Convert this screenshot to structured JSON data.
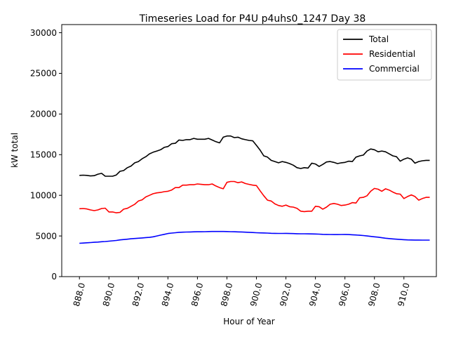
{
  "chart_data": {
    "type": "line",
    "title": "Timeseries Load for P4U p4uhs0_1247  Day 38",
    "xlabel": "Hour of Year",
    "ylabel": "kW total",
    "xlim": [
      886.8,
      912.2
    ],
    "ylim": [
      0,
      31000
    ],
    "x_ticks": [
      888.0,
      890.0,
      892.0,
      894.0,
      896.0,
      898.0,
      900.0,
      902.0,
      904.0,
      906.0,
      908.0,
      910.0
    ],
    "x_tick_labels": [
      "888.0",
      "890.0",
      "892.0",
      "894.0",
      "896.0",
      "898.0",
      "900.0",
      "902.0",
      "904.0",
      "906.0",
      "908.0",
      "910.0"
    ],
    "y_ticks": [
      0,
      5000,
      10000,
      15000,
      20000,
      25000,
      30000
    ],
    "y_tick_labels": [
      "0",
      "5000",
      "10000",
      "15000",
      "20000",
      "25000",
      "30000"
    ],
    "legend_position": "top-right",
    "x": [
      888.0,
      888.25,
      888.5,
      888.75,
      889.0,
      889.25,
      889.5,
      889.75,
      890.0,
      890.25,
      890.5,
      890.75,
      891.0,
      891.25,
      891.5,
      891.75,
      892.0,
      892.25,
      892.5,
      892.75,
      893.0,
      893.25,
      893.5,
      893.75,
      894.0,
      894.25,
      894.5,
      894.75,
      895.0,
      895.25,
      895.5,
      895.75,
      896.0,
      896.25,
      896.5,
      896.75,
      897.0,
      897.25,
      897.5,
      897.75,
      898.0,
      898.25,
      898.5,
      898.75,
      899.0,
      899.25,
      899.5,
      899.75,
      900.0,
      900.25,
      900.5,
      900.75,
      901.0,
      901.25,
      901.5,
      901.75,
      902.0,
      902.25,
      902.5,
      902.75,
      903.0,
      903.25,
      903.5,
      903.75,
      904.0,
      904.25,
      904.5,
      904.75,
      905.0,
      905.25,
      905.5,
      905.75,
      906.0,
      906.25,
      906.5,
      906.75,
      907.0,
      907.25,
      907.5,
      907.75,
      908.0,
      908.25,
      908.5,
      908.75,
      909.0,
      909.25,
      909.5,
      909.75,
      910.0,
      910.25,
      910.5,
      910.75,
      911.0,
      911.25,
      911.5,
      911.75
    ],
    "series": [
      {
        "name": "Total",
        "color": "#000000",
        "values": [
          12450,
          12480,
          12450,
          12380,
          12420,
          12600,
          12700,
          12350,
          12350,
          12350,
          12500,
          12950,
          13050,
          13400,
          13600,
          14000,
          14150,
          14500,
          14750,
          15100,
          15300,
          15450,
          15600,
          15900,
          16000,
          16350,
          16400,
          16800,
          16750,
          16850,
          16850,
          17000,
          16900,
          16900,
          16900,
          17000,
          16800,
          16600,
          16450,
          17150,
          17300,
          17300,
          17100,
          17150,
          16950,
          16850,
          16750,
          16700,
          16150,
          15550,
          14850,
          14700,
          14300,
          14150,
          14000,
          14150,
          14050,
          13900,
          13700,
          13400,
          13300,
          13400,
          13350,
          13950,
          13850,
          13550,
          13800,
          14100,
          14150,
          14050,
          13900,
          14000,
          14050,
          14200,
          14150,
          14700,
          14850,
          14950,
          15450,
          15700,
          15600,
          15350,
          15450,
          15350,
          15100,
          14850,
          14750,
          14200,
          14450,
          14600,
          14450,
          13950,
          14150,
          14250,
          14300,
          14300
        ]
      },
      {
        "name": "Residential",
        "color": "#ff0000",
        "values": [
          8350,
          8380,
          8320,
          8200,
          8120,
          8200,
          8380,
          8420,
          7950,
          7950,
          7850,
          7900,
          8300,
          8400,
          8650,
          8900,
          9300,
          9450,
          9800,
          10000,
          10200,
          10300,
          10350,
          10450,
          10500,
          10650,
          10950,
          10950,
          11250,
          11250,
          11300,
          11300,
          11400,
          11350,
          11300,
          11300,
          11400,
          11150,
          10950,
          10800,
          11600,
          11700,
          11700,
          11550,
          11650,
          11450,
          11350,
          11250,
          11200,
          10550,
          9950,
          9400,
          9300,
          8950,
          8750,
          8650,
          8800,
          8600,
          8550,
          8400,
          8050,
          8000,
          8050,
          8050,
          8650,
          8600,
          8300,
          8550,
          8900,
          9000,
          8900,
          8750,
          8800,
          8900,
          9100,
          9050,
          9700,
          9750,
          9950,
          10500,
          10850,
          10750,
          10500,
          10800,
          10650,
          10400,
          10200,
          10150,
          9600,
          9850,
          10050,
          9850,
          9400,
          9600,
          9750,
          9750
        ]
      },
      {
        "name": "Commercial",
        "color": "#0000ff",
        "values": [
          4100,
          4130,
          4160,
          4190,
          4220,
          4250,
          4290,
          4320,
          4360,
          4400,
          4450,
          4520,
          4560,
          4600,
          4650,
          4690,
          4720,
          4760,
          4800,
          4830,
          4900,
          5000,
          5100,
          5200,
          5300,
          5350,
          5400,
          5450,
          5470,
          5480,
          5490,
          5510,
          5520,
          5520,
          5530,
          5540,
          5550,
          5550,
          5550,
          5550,
          5540,
          5530,
          5520,
          5500,
          5490,
          5470,
          5450,
          5420,
          5400,
          5380,
          5370,
          5350,
          5330,
          5320,
          5310,
          5310,
          5320,
          5300,
          5290,
          5280,
          5270,
          5270,
          5260,
          5250,
          5240,
          5220,
          5200,
          5190,
          5180,
          5170,
          5170,
          5180,
          5190,
          5170,
          5150,
          5120,
          5090,
          5050,
          5000,
          4950,
          4900,
          4850,
          4780,
          4720,
          4680,
          4640,
          4600,
          4570,
          4540,
          4520,
          4510,
          4500,
          4500,
          4490,
          4490,
          4490
        ]
      }
    ]
  }
}
